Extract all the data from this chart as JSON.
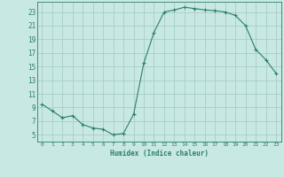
{
  "x": [
    0,
    1,
    2,
    3,
    4,
    5,
    6,
    7,
    8,
    9,
    10,
    11,
    12,
    13,
    14,
    15,
    16,
    17,
    18,
    19,
    20,
    21,
    22,
    23
  ],
  "y": [
    9.5,
    8.5,
    7.5,
    7.8,
    6.5,
    6.0,
    5.8,
    5.0,
    5.2,
    8.0,
    15.5,
    20.0,
    23.0,
    23.3,
    23.7,
    23.5,
    23.3,
    23.2,
    23.0,
    22.5,
    21.0,
    17.5,
    16.0,
    14.0
  ],
  "line_color": "#2e7d6e",
  "marker": "+",
  "bg_color": "#c8e8e4",
  "grid_color": "#a8cdc8",
  "axis_color": "#2e7d6e",
  "xlabel": "Humidex (Indice chaleur)",
  "ylim": [
    4,
    24.5
  ],
  "xlim": [
    -0.5,
    23.5
  ],
  "yticks": [
    5,
    7,
    9,
    11,
    13,
    15,
    17,
    19,
    21,
    23
  ],
  "xticks": [
    0,
    1,
    2,
    3,
    4,
    5,
    6,
    7,
    8,
    9,
    10,
    11,
    12,
    13,
    14,
    15,
    16,
    17,
    18,
    19,
    20,
    21,
    22,
    23
  ]
}
